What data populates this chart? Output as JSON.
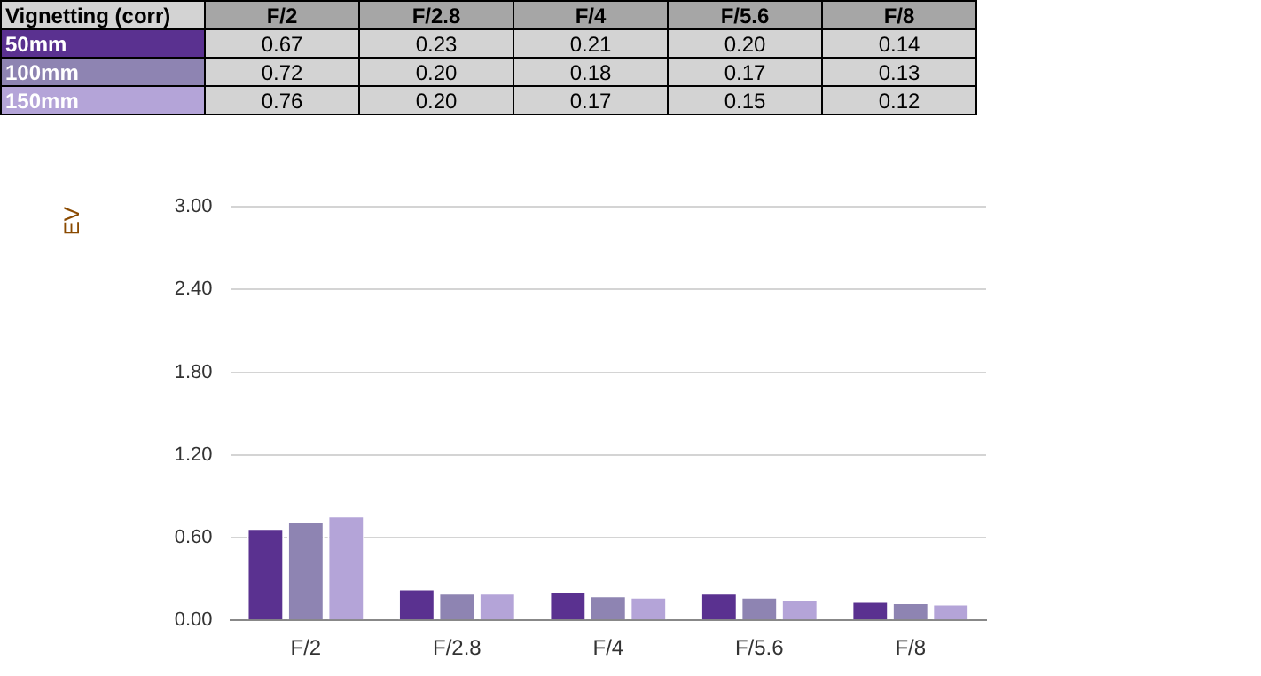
{
  "chart_data": {
    "type": "bar",
    "title": "Vignetting (corr)",
    "ylabel": "EV",
    "categories": [
      "F/2",
      "F/2.8",
      "F/4",
      "F/5.6",
      "F/8"
    ],
    "series": [
      {
        "name": "50mm",
        "color": "#5a3190",
        "values": [
          0.67,
          0.23,
          0.21,
          0.2,
          0.14
        ],
        "value_labels": [
          "0.67",
          "0.23",
          "0.21",
          "0.20",
          "0.14"
        ]
      },
      {
        "name": "100mm",
        "color": "#8e84b2",
        "values": [
          0.72,
          0.2,
          0.18,
          0.17,
          0.13
        ],
        "value_labels": [
          "0.72",
          "0.20",
          "0.18",
          "0.17",
          "0.13"
        ]
      },
      {
        "name": "150mm",
        "color": "#b4a4d8",
        "values": [
          0.76,
          0.2,
          0.17,
          0.15,
          0.12
        ],
        "value_labels": [
          "0.76",
          "0.20",
          "0.17",
          "0.15",
          "0.12"
        ]
      }
    ],
    "ylim": [
      0,
      3
    ],
    "yticks": [
      {
        "value": 0,
        "label": "0.00"
      },
      {
        "value": 0.6,
        "label": "0.60"
      },
      {
        "value": 1.2,
        "label": "1.20"
      },
      {
        "value": 1.8,
        "label": "1.80"
      },
      {
        "value": 2.4,
        "label": "2.40"
      },
      {
        "value": 3,
        "label": "3.00"
      }
    ],
    "grid": "y",
    "legend": false
  }
}
